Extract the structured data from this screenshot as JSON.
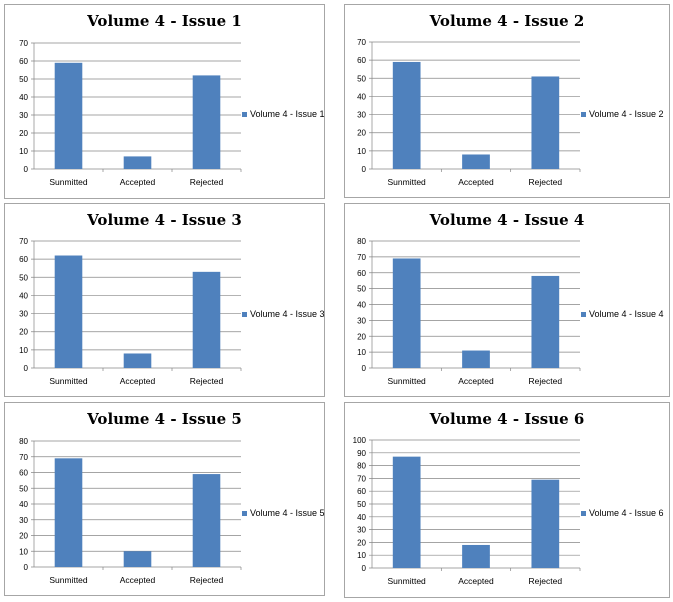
{
  "chart_data": [
    {
      "type": "bar",
      "title": "Volume 4 - Issue 1",
      "categories": [
        "Sunmitted",
        "Accepted",
        "Rejected"
      ],
      "series": [
        {
          "name": "Volume 4 - Issue 1",
          "values": [
            59,
            7,
            52
          ]
        }
      ],
      "ylim": [
        0,
        70
      ],
      "ystep": 10,
      "grid": true,
      "legend_position": "right",
      "bar_color": "#4f81bd"
    },
    {
      "type": "bar",
      "title": "Volume 4 - Issue 2",
      "categories": [
        "Sunmitted",
        "Accepted",
        "Rejected"
      ],
      "series": [
        {
          "name": "Volume 4 - Issue 2",
          "values": [
            59,
            8,
            51
          ]
        }
      ],
      "ylim": [
        0,
        70
      ],
      "ystep": 10,
      "grid": true,
      "legend_position": "right",
      "bar_color": "#4f81bd"
    },
    {
      "type": "bar",
      "title": "Volume 4 - Issue 3",
      "categories": [
        "Sunmitted",
        "Accepted",
        "Rejected"
      ],
      "series": [
        {
          "name": "Volume 4 - Issue 3",
          "values": [
            62,
            8,
            53
          ]
        }
      ],
      "ylim": [
        0,
        70
      ],
      "ystep": 10,
      "grid": true,
      "legend_position": "right",
      "bar_color": "#4f81bd"
    },
    {
      "type": "bar",
      "title": "Volume 4 - Issue 4",
      "categories": [
        "Sunmitted",
        "Accepted",
        "Rejected"
      ],
      "series": [
        {
          "name": "Volume 4 - Issue 4",
          "values": [
            69,
            11,
            58
          ]
        }
      ],
      "ylim": [
        0,
        80
      ],
      "ystep": 10,
      "grid": true,
      "legend_position": "right",
      "bar_color": "#4f81bd"
    },
    {
      "type": "bar",
      "title": "Volume 4 - Issue 5",
      "categories": [
        "Sunmitted",
        "Accepted",
        "Rejected"
      ],
      "series": [
        {
          "name": "Volume 4 - Issue 5",
          "values": [
            69,
            10,
            59
          ]
        }
      ],
      "ylim": [
        0,
        80
      ],
      "ystep": 10,
      "grid": true,
      "legend_position": "right",
      "bar_color": "#4f81bd"
    },
    {
      "type": "bar",
      "title": "Volume 4 - Issue 6",
      "categories": [
        "Sunmitted",
        "Accepted",
        "Rejected"
      ],
      "series": [
        {
          "name": "Volume 4 - Issue 6",
          "values": [
            87,
            18,
            69
          ]
        }
      ],
      "ylim": [
        0,
        100
      ],
      "ystep": 10,
      "grid": true,
      "legend_position": "right",
      "bar_color": "#4f81bd"
    }
  ]
}
